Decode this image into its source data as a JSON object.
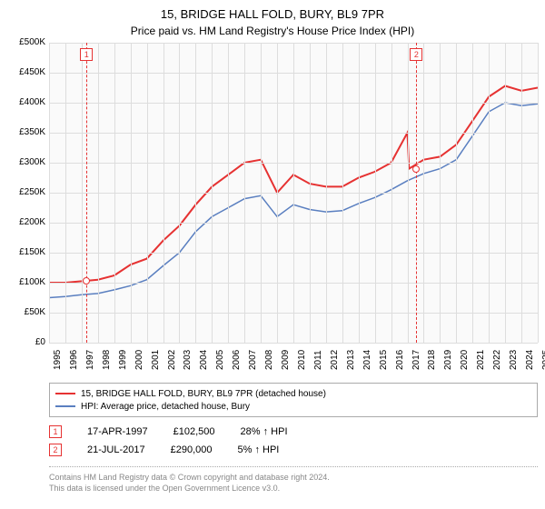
{
  "title": "15, BRIDGE HALL FOLD, BURY, BL9 7PR",
  "subtitle": "Price paid vs. HM Land Registry's House Price Index (HPI)",
  "chart": {
    "type": "line",
    "background_color": "#fafafa",
    "grid_color": "#dddddd",
    "text_color": "#000000",
    "ylim": [
      0,
      500000
    ],
    "xlim": [
      1995,
      2025
    ],
    "ylabels": [
      "£0",
      "£50K",
      "£100K",
      "£150K",
      "£200K",
      "£250K",
      "£300K",
      "£350K",
      "£400K",
      "£450K",
      "£500K"
    ],
    "yticks": [
      0,
      50000,
      100000,
      150000,
      200000,
      250000,
      300000,
      350000,
      400000,
      450000,
      500000
    ],
    "xticks": [
      1995,
      1996,
      1997,
      1998,
      1999,
      2000,
      2001,
      2002,
      2003,
      2004,
      2005,
      2006,
      2007,
      2008,
      2009,
      2010,
      2011,
      2012,
      2013,
      2014,
      2015,
      2016,
      2017,
      2018,
      2019,
      2020,
      2021,
      2022,
      2023,
      2024,
      2025
    ],
    "series": [
      {
        "name": "red",
        "color": "#e63232",
        "width": 2,
        "legend": "15, BRIDGE HALL FOLD, BURY, BL9 7PR (detached house)",
        "data": [
          [
            1995,
            100000
          ],
          [
            1996,
            100000
          ],
          [
            1997,
            102500
          ],
          [
            1998,
            105000
          ],
          [
            1999,
            112000
          ],
          [
            2000,
            130000
          ],
          [
            2001,
            140000
          ],
          [
            2002,
            170000
          ],
          [
            2003,
            195000
          ],
          [
            2004,
            230000
          ],
          [
            2005,
            260000
          ],
          [
            2006,
            280000
          ],
          [
            2007,
            300000
          ],
          [
            2008,
            305000
          ],
          [
            2009,
            250000
          ],
          [
            2010,
            280000
          ],
          [
            2011,
            265000
          ],
          [
            2012,
            260000
          ],
          [
            2013,
            260000
          ],
          [
            2014,
            275000
          ],
          [
            2015,
            285000
          ],
          [
            2016,
            300000
          ],
          [
            2017,
            350000
          ],
          [
            2017.1,
            290000
          ],
          [
            2018,
            305000
          ],
          [
            2019,
            310000
          ],
          [
            2020,
            330000
          ],
          [
            2021,
            370000
          ],
          [
            2022,
            410000
          ],
          [
            2023,
            428000
          ],
          [
            2024,
            420000
          ],
          [
            2025,
            425000
          ]
        ]
      },
      {
        "name": "blue",
        "color": "#5a7fc0",
        "width": 1.5,
        "legend": "HPI: Average price, detached house, Bury",
        "data": [
          [
            1995,
            75000
          ],
          [
            1996,
            77000
          ],
          [
            1997,
            80000
          ],
          [
            1998,
            82000
          ],
          [
            1999,
            88000
          ],
          [
            2000,
            95000
          ],
          [
            2001,
            105000
          ],
          [
            2002,
            128000
          ],
          [
            2003,
            150000
          ],
          [
            2004,
            185000
          ],
          [
            2005,
            210000
          ],
          [
            2006,
            225000
          ],
          [
            2007,
            240000
          ],
          [
            2008,
            245000
          ],
          [
            2009,
            210000
          ],
          [
            2010,
            230000
          ],
          [
            2011,
            222000
          ],
          [
            2012,
            218000
          ],
          [
            2013,
            220000
          ],
          [
            2014,
            232000
          ],
          [
            2015,
            242000
          ],
          [
            2016,
            255000
          ],
          [
            2017,
            270000
          ],
          [
            2018,
            282000
          ],
          [
            2019,
            290000
          ],
          [
            2020,
            305000
          ],
          [
            2021,
            345000
          ],
          [
            2022,
            385000
          ],
          [
            2023,
            400000
          ],
          [
            2024,
            395000
          ],
          [
            2025,
            398000
          ]
        ]
      }
    ],
    "events": [
      {
        "id": "1",
        "year": 1997.3,
        "value": 102500,
        "color": "#e63232",
        "date": "17-APR-1997",
        "price": "£102,500",
        "delta": "28% ↑ HPI"
      },
      {
        "id": "2",
        "year": 2017.55,
        "value": 290000,
        "color": "#e63232",
        "date": "21-JUL-2017",
        "price": "£290,000",
        "delta": "5% ↑ HPI"
      }
    ]
  },
  "footer_line1": "Contains HM Land Registry data © Crown copyright and database right 2024.",
  "footer_line2": "This data is licensed under the Open Government Licence v3.0."
}
